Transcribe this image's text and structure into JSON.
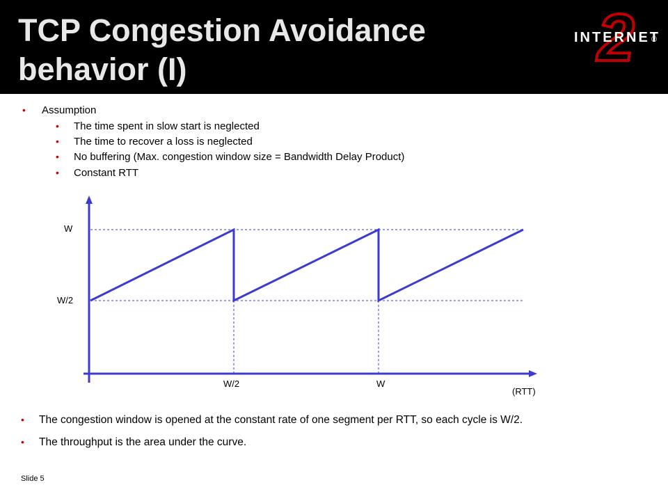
{
  "header": {
    "title_lines": [
      "TCP Congestion Avoidance",
      "behavior (I)"
    ],
    "logo": {
      "word": "INTERNET",
      "numeral": "2",
      "symbol": "®"
    }
  },
  "assumptions": {
    "heading": "Assumption",
    "items": [
      "The time spent in slow start is neglected",
      "The time to recover a loss is neglected",
      "No buffering (Max. congestion window size = Bandwidth Delay Product)",
      "Constant RTT"
    ]
  },
  "diagram": {
    "y_labels": [
      "W",
      "W/2"
    ],
    "x_labels": [
      "W/2",
      "W"
    ],
    "x_unit": "(RTT)"
  },
  "notes": [
    "The congestion window is opened at the constant rate of one segment per RTT, so each cycle is W/2.",
    "The throughput is the area under the curve."
  ],
  "footer": {
    "slide": "Slide 5"
  }
}
